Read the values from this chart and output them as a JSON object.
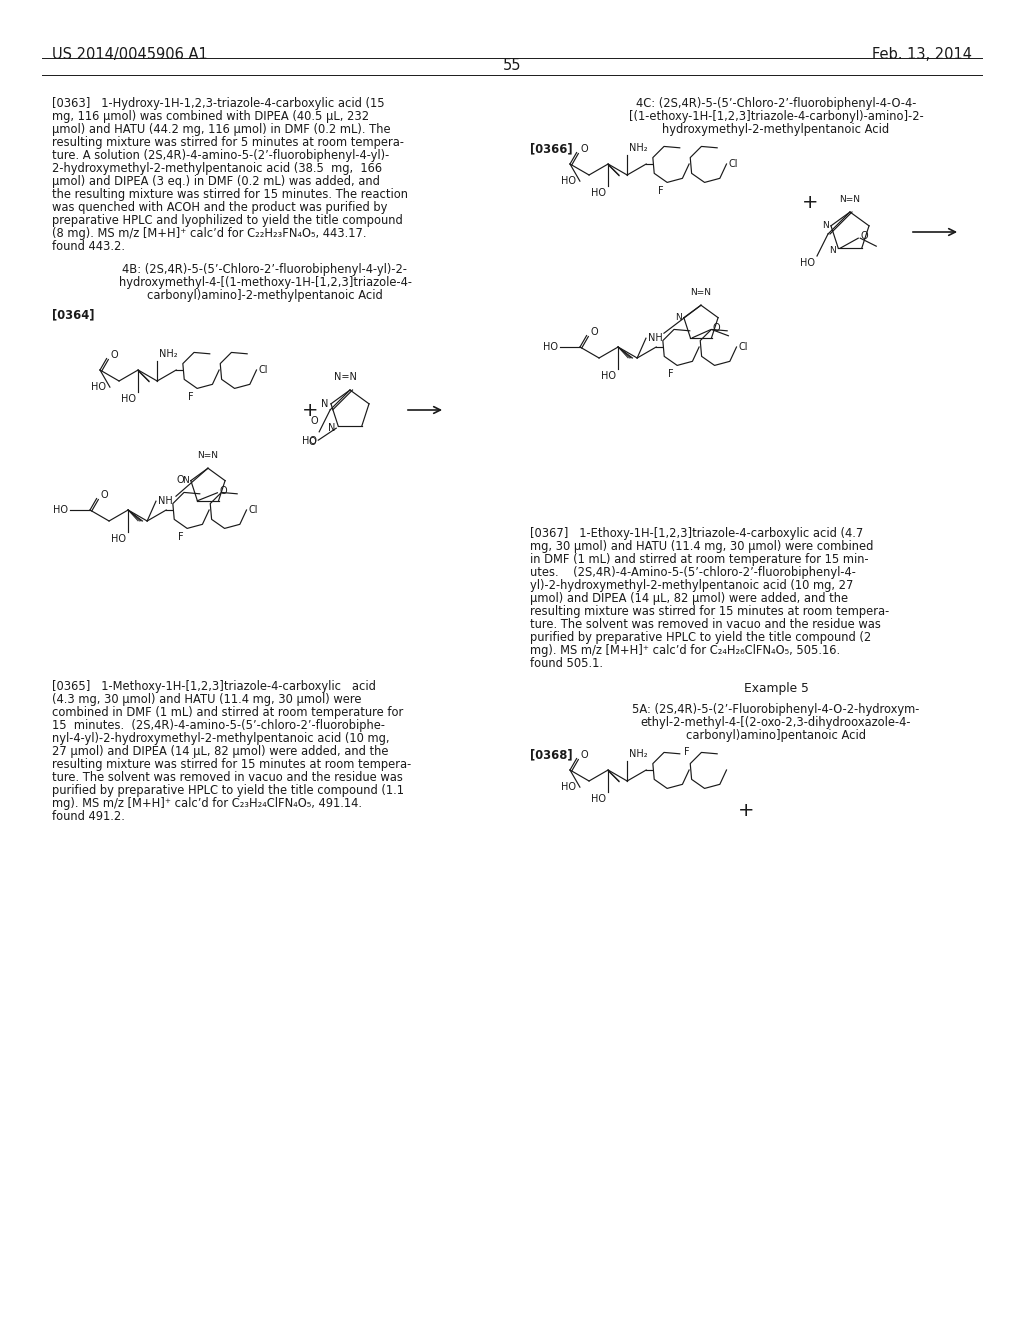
{
  "bg": "#ffffff",
  "fg": "#1a1a1a",
  "header_left": "US 2014/0045906 A1",
  "header_right": "Feb. 13, 2014",
  "page_num": "55",
  "para363": [
    "[0363]   1-Hydroxy-1H-1,2,3-triazole-4-carboxylic acid (15",
    "mg, 116 μmol) was combined with DIPEA (40.5 μL, 232",
    "μmol) and HATU (44.2 mg, 116 μmol) in DMF (0.2 mL). The",
    "resulting mixture was stirred for 5 minutes at room tempera-",
    "ture. A solution (2S,4R)-4-amino-5-(2’-fluorobiphenyl-4-yl)-",
    "2-hydroxymethyl-2-methylpentanoic acid (38.5  mg,  166",
    "μmol) and DIPEA (3 eq.) in DMF (0.2 mL) was added, and",
    "the resulting mixture was stirred for 15 minutes. The reaction",
    "was quenched with ACOH and the product was purified by",
    "preparative HPLC and lyophilized to yield the title compound",
    "(8 mg). MS m/z [M+H]⁺ calc’d for C₂₂H₂₃FN₄O₅, 443.17.",
    "found 443.2."
  ],
  "title4B": [
    "4B: (2S,4R)-5-(5’-Chloro-2’-fluorobiphenyl-4-yl)-2-",
    "hydroxymethyl-4-[(1-methoxy-1H-[1,2,3]triazole-4-",
    "carbonyl)amino]-2-methylpentanoic Acid"
  ],
  "label364": "[0364]",
  "para365": [
    "[0365]   1-Methoxy-1H-[1,2,3]triazole-4-carboxylic   acid",
    "(4.3 mg, 30 μmol) and HATU (11.4 mg, 30 μmol) were",
    "combined in DMF (1 mL) and stirred at room temperature for",
    "15  minutes.  (2S,4R)-4-amino-5-(5’-chloro-2’-fluorobiphe-",
    "nyl-4-yl)-2-hydroxymethyl-2-methylpentanoic acid (10 mg,",
    "27 μmol) and DIPEA (14 μL, 82 μmol) were added, and the",
    "resulting mixture was stirred for 15 minutes at room tempera-",
    "ture. The solvent was removed in vacuo and the residue was",
    "purified by preparative HPLC to yield the title compound (1.1",
    "mg). MS m/z [M+H]⁺ calc’d for C₂₃H₂₄ClFN₄O₅, 491.14.",
    "found 491.2."
  ],
  "title4C": [
    "4C: (2S,4R)-5-(5’-Chloro-2’-fluorobiphenyl-4-O-4-",
    "[(1-ethoxy-1H-[1,2,3]triazole-4-carbonyl)-amino]-2-",
    "hydroxymethyl-2-methylpentanoic Acid"
  ],
  "label366": "[0366]",
  "para367": [
    "[0367]   1-Ethoxy-1H-[1,2,3]triazole-4-carboxylic acid (4.7",
    "mg, 30 μmol) and HATU (11.4 mg, 30 μmol) were combined",
    "in DMF (1 mL) and stirred at room temperature for 15 min-",
    "utes.    (2S,4R)-4-Amino-5-(5’-chloro-2’-fluorobiphenyl-4-",
    "yl)-2-hydroxymethyl-2-methylpentanoic acid (10 mg, 27",
    "μmol) and DIPEA (14 μL, 82 μmol) were added, and the",
    "resulting mixture was stirred for 15 minutes at room tempera-",
    "ture. The solvent was removed in vacuo and the residue was",
    "purified by preparative HPLC to yield the title compound (2",
    "mg). MS m/z [M+H]⁺ calc’d for C₂₄H₂₆ClFN₄O₅, 505.16.",
    "found 505.1."
  ],
  "example5": "Example 5",
  "title5A": [
    "5A: (2S,4R)-5-(2’-Fluorobiphenyl-4-O-2-hydroxym-",
    "ethyl-2-methyl-4-[(2-oxo-2,3-dihydrooxazole-4-",
    "carbonyl)amino]pentanoic Acid"
  ],
  "label368": "[0368]"
}
